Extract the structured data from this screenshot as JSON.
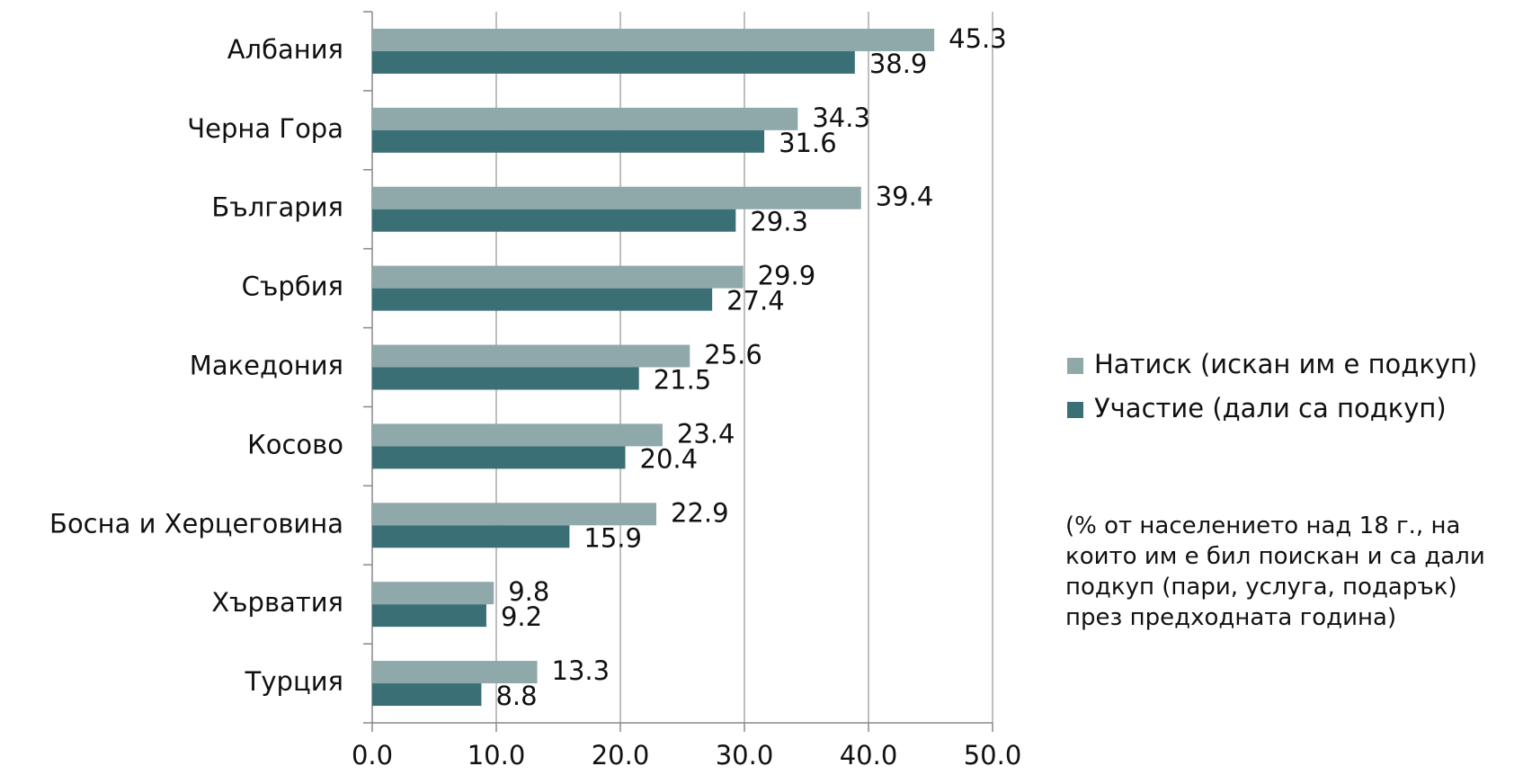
{
  "chart_data": {
    "type": "barh",
    "categories": [
      "Албания",
      "Черна Гора",
      "България",
      "Сърбия",
      "Македония",
      "Косово",
      "Босна и Херцеговина",
      "Хърватия",
      "Турция"
    ],
    "series": [
      {
        "name": "Натиск (искан им е подкуп)",
        "color": "#8fa8aa",
        "values": [
          45.3,
          34.3,
          39.4,
          29.9,
          25.6,
          23.4,
          22.9,
          9.8,
          13.3
        ]
      },
      {
        "name": "Участие (дали са подкуп)",
        "color": "#3a7075",
        "values": [
          38.9,
          31.6,
          29.3,
          27.4,
          21.5,
          20.4,
          15.9,
          9.2,
          8.8
        ]
      }
    ],
    "xlim": [
      0,
      50
    ],
    "xticks": [
      {
        "value": 0,
        "label": "0.0"
      },
      {
        "value": 10,
        "label": "10.0"
      },
      {
        "value": 20,
        "label": "20.0"
      },
      {
        "value": 30,
        "label": "30.0"
      },
      {
        "value": 40,
        "label": "40.0"
      },
      {
        "value": 50,
        "label": "50.0"
      }
    ],
    "grid": true,
    "legend": "right",
    "annotation": "(% от населението над 18 г., на които им е бил поискан и са дали подкуп (пари, услуга, подарък) през предходната година)"
  }
}
